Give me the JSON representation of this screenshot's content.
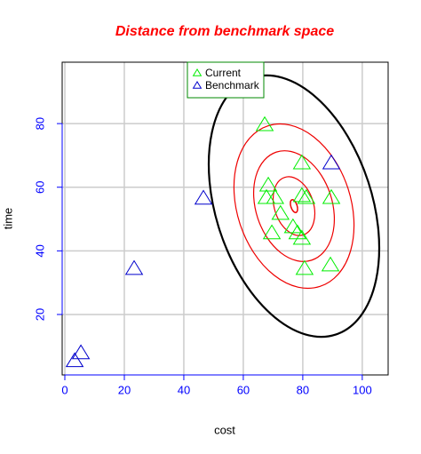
{
  "chart_data": {
    "type": "scatter",
    "title": "Distance from benchmark space",
    "xlabel": "cost",
    "ylabel": "time",
    "xlim": [
      -0.9,
      108.7
    ],
    "ylim": [
      1.0,
      99.3
    ],
    "xticks": [
      0,
      20,
      40,
      60,
      80,
      100
    ],
    "yticks": [
      20,
      40,
      60,
      80
    ],
    "grid": true,
    "legend": "top",
    "series": [
      {
        "name": "Current",
        "color": "#00ee00",
        "x": [
          67.2,
          79.7,
          68.4,
          67.8,
          70.7,
          79.7,
          81.2,
          89.6,
          72.5,
          76.7,
          78.2,
          69.6,
          79.7,
          89.3,
          80.6
        ],
        "y": [
          79.7,
          67.7,
          60.7,
          56.8,
          56.8,
          57.4,
          56.8,
          56.8,
          51.8,
          47.6,
          45.7,
          45.7,
          44.0,
          35.6,
          34.5
        ]
      },
      {
        "name": "Benchmark",
        "color": "#0000cc",
        "x": [
          89.6,
          46.6,
          23.3,
          5.4,
          3.3
        ],
        "y": [
          67.7,
          56.6,
          34.5,
          8.0,
          5.5
        ]
      }
    ]
  }
}
